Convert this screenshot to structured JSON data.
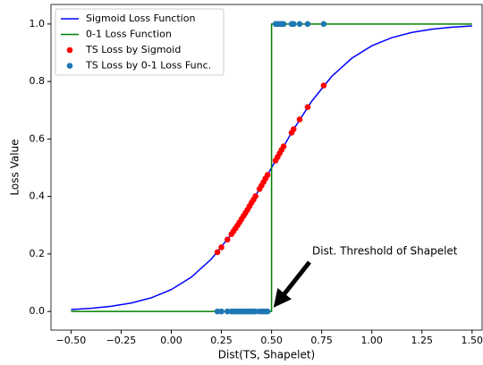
{
  "chart_data": {
    "type": "line",
    "xlabel": "Dist(TS, Shapelet)",
    "ylabel": "Loss Value",
    "xlim": [
      -0.6,
      1.55
    ],
    "ylim": [
      -0.065,
      1.068
    ],
    "xticks": [
      {
        "value": -0.5,
        "label": "−0.50"
      },
      {
        "value": -0.25,
        "label": "−0.25"
      },
      {
        "value": 0,
        "label": "0.00"
      },
      0.25,
      {
        "value": 0.5,
        "label": "0.50"
      },
      0.75,
      {
        "value": 1,
        "label": "1.00"
      },
      1.25,
      {
        "value": 1.5,
        "label": "1.50"
      }
    ],
    "yticks": [
      {
        "value": 0,
        "label": "0.0"
      },
      0.2,
      0.4,
      0.6,
      0.8,
      {
        "value": 1,
        "label": "1.0"
      }
    ],
    "legend": "upper left",
    "annotation": "Dist. Threshold of Shapelet",
    "series": [
      {
        "name": "Sigmoid Loss Function",
        "color": "#0000ff",
        "type": "line",
        "x": [
          -0.5,
          -0.4,
          -0.3,
          -0.2,
          -0.1,
          0,
          0.1,
          0.2,
          0.3,
          0.4,
          0.5,
          0.6,
          0.7,
          0.8,
          0.9,
          1.0,
          1.1,
          1.2,
          1.3,
          1.4,
          1.5
        ],
        "values": [
          0.0067,
          0.011,
          0.018,
          0.0293,
          0.0474,
          0.0759,
          0.1192,
          0.1824,
          0.2689,
          0.3775,
          0.5,
          0.6225,
          0.7311,
          0.8176,
          0.8808,
          0.9241,
          0.9526,
          0.9707,
          0.982,
          0.989,
          0.9933
        ]
      },
      {
        "name": "0-1 Loss Function",
        "color": "#008000",
        "type": "line",
        "x": [
          -0.5,
          0.5,
          0.5,
          1.5
        ],
        "values": [
          0,
          0,
          1,
          1
        ]
      },
      {
        "name": "TS Loss by Sigmoid",
        "color": "#ff0000",
        "type": "scatter",
        "x": [
          0.23,
          0.25,
          0.28,
          0.3,
          0.31,
          0.32,
          0.33,
          0.34,
          0.35,
          0.36,
          0.37,
          0.38,
          0.39,
          0.4,
          0.41,
          0.42,
          0.44,
          0.45,
          0.46,
          0.47,
          0.48,
          0.52,
          0.53,
          0.54,
          0.55,
          0.56,
          0.6,
          0.61,
          0.64,
          0.68,
          0.76
        ],
        "values": [
          0.206,
          0.223,
          0.25,
          0.269,
          0.279,
          0.289,
          0.299,
          0.31,
          0.321,
          0.332,
          0.343,
          0.354,
          0.366,
          0.378,
          0.389,
          0.401,
          0.426,
          0.438,
          0.45,
          0.463,
          0.475,
          0.525,
          0.537,
          0.55,
          0.562,
          0.574,
          0.622,
          0.634,
          0.668,
          0.711,
          0.786
        ]
      },
      {
        "name": "TS Loss by 0-1 Loss Func.",
        "color": "#1f77b4",
        "type": "scatter",
        "x": [
          0.23,
          0.25,
          0.28,
          0.3,
          0.31,
          0.32,
          0.33,
          0.34,
          0.35,
          0.36,
          0.37,
          0.38,
          0.39,
          0.4,
          0.41,
          0.42,
          0.44,
          0.45,
          0.46,
          0.47,
          0.48,
          0.52,
          0.53,
          0.54,
          0.55,
          0.56,
          0.6,
          0.61,
          0.64,
          0.68,
          0.76
        ],
        "values": [
          0,
          0,
          0,
          0,
          0,
          0,
          0,
          0,
          0,
          0,
          0,
          0,
          0,
          0,
          0,
          0,
          0,
          0,
          0,
          0,
          0,
          1,
          1,
          1,
          1,
          1,
          1,
          1,
          1,
          1,
          1
        ]
      }
    ]
  }
}
